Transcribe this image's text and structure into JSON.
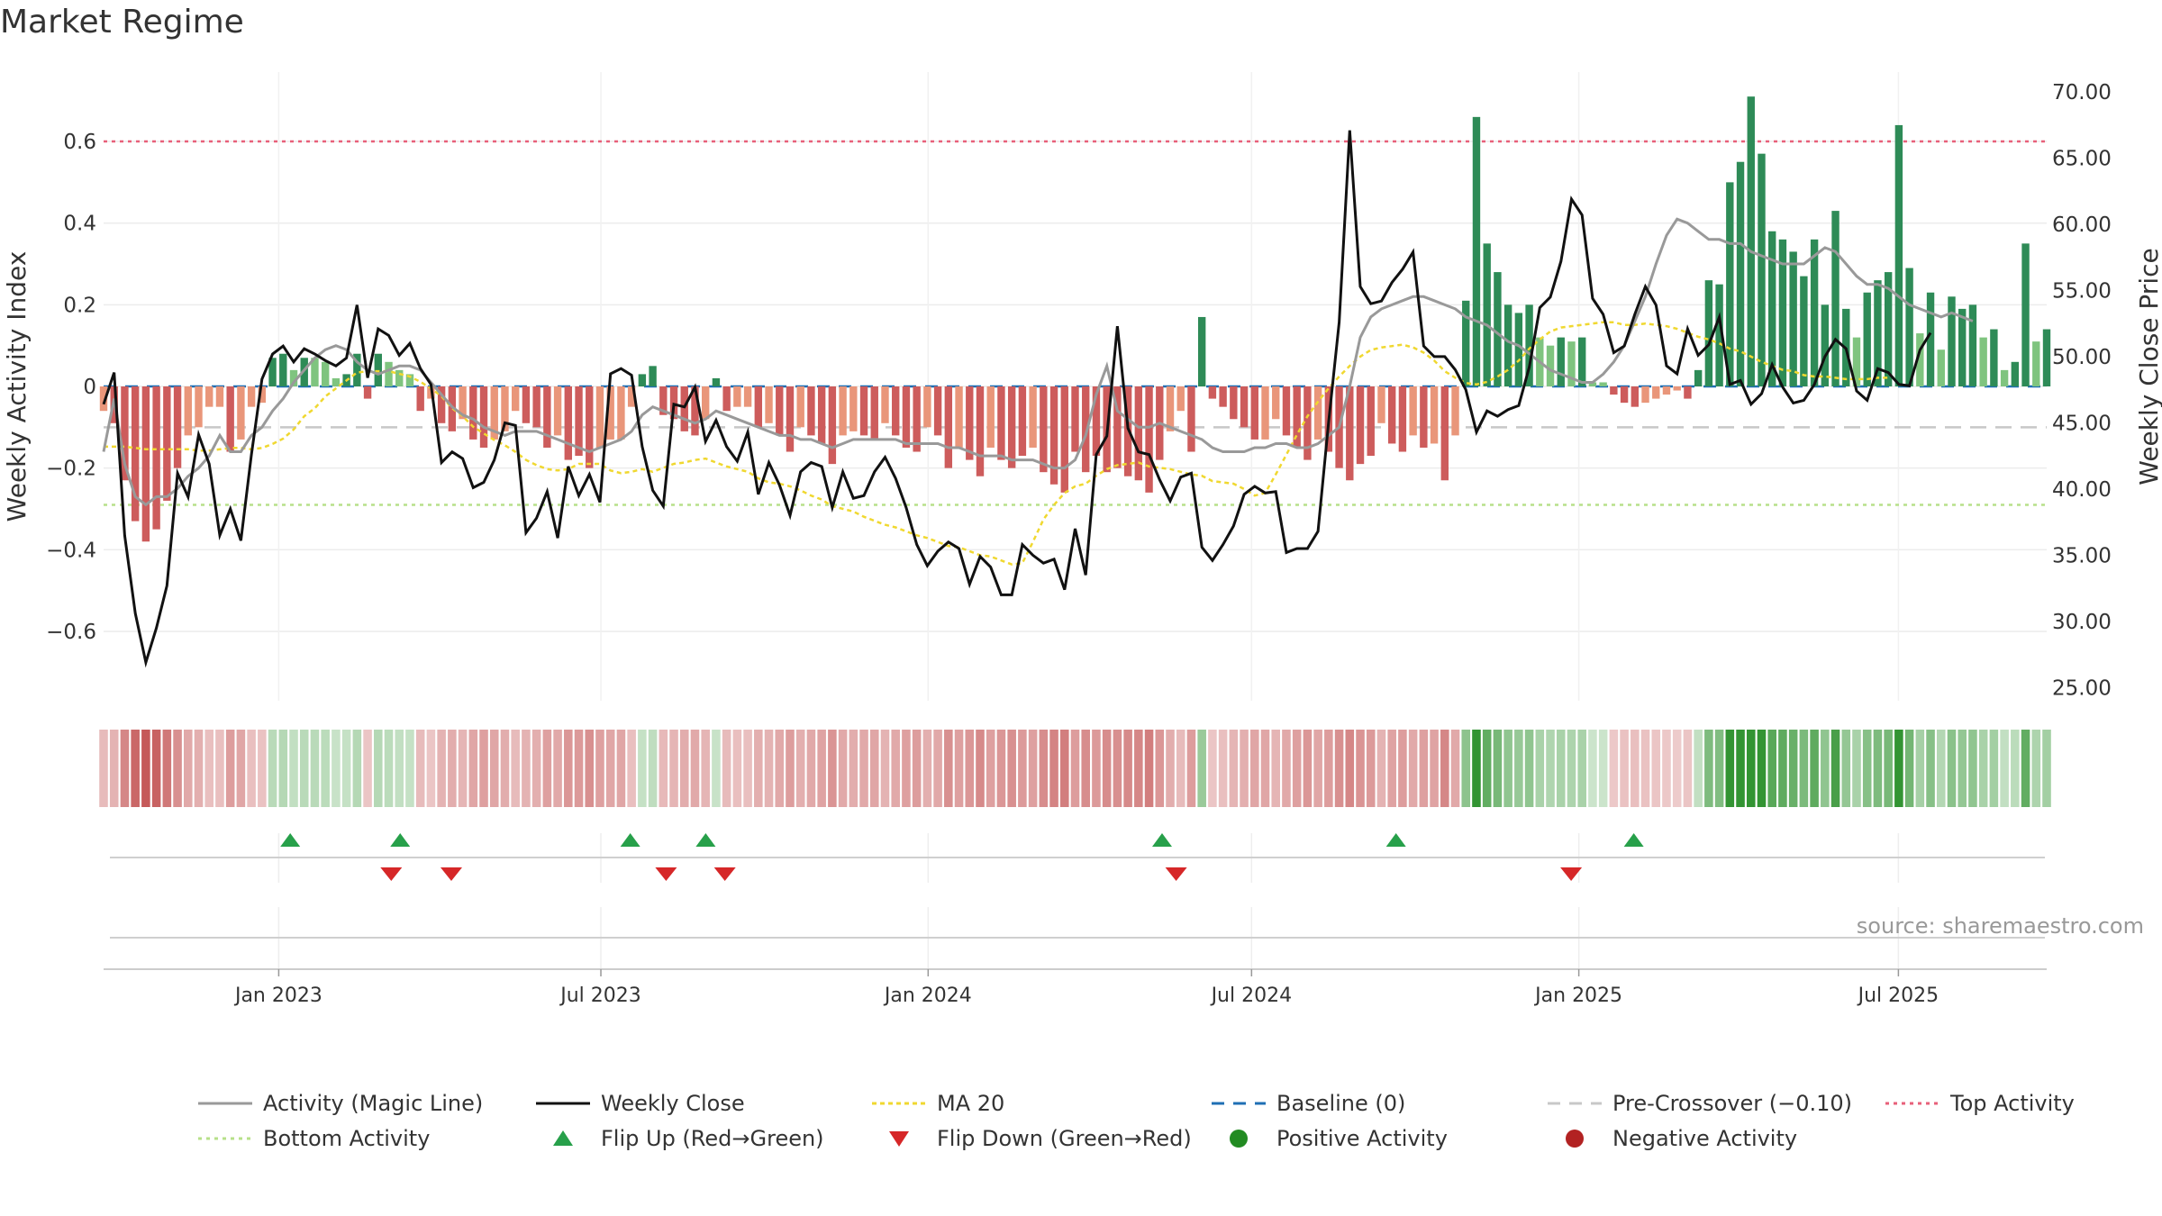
{
  "page": {
    "title": "Market Regime",
    "source": "source: sharemaestro.com"
  },
  "chart_data": {
    "type": "bar",
    "title": "Market Regime",
    "y_left": {
      "label": "Weekly Activity Index",
      "range": [
        -0.77,
        0.77
      ],
      "ticks": [
        -0.6,
        -0.4,
        -0.2,
        0,
        0.2,
        0.4,
        0.6
      ],
      "tick_labels": [
        "−0.6",
        "−0.4",
        "−0.2",
        "0",
        "0.2",
        "0.4",
        "0.6"
      ]
    },
    "y_right": {
      "label": "Weekly Close Price",
      "range": [
        24.0,
        71.5
      ],
      "ticks": [
        25,
        30,
        35,
        40,
        45,
        50,
        55,
        60,
        65,
        70
      ],
      "tick_labels": [
        "25.00",
        "30.00",
        "35.00",
        "40.00",
        "45.00",
        "50.00",
        "55.00",
        "60.00",
        "65.00",
        "70.00"
      ]
    },
    "x_axis": {
      "range_weeks": [
        0,
        152
      ],
      "ticks": [
        {
          "label": "Jan 2023",
          "week": 13.7
        },
        {
          "label": "Jul 2023",
          "week": 38.9
        },
        {
          "label": "Jan 2024",
          "week": 64.5
        },
        {
          "label": "Jul 2024",
          "week": 89.8
        },
        {
          "label": "Jan 2025",
          "week": 115.4
        },
        {
          "label": "Jul 2025",
          "week": 140.4
        }
      ]
    },
    "reference_lines": {
      "top_activity": 0.6,
      "bottom_activity": -0.29,
      "pre_crossover": -0.1,
      "baseline": 0
    },
    "series": [
      {
        "name": "Weekly Activity Index",
        "values": [
          -0.06,
          -0.09,
          -0.23,
          -0.33,
          -0.38,
          -0.35,
          -0.28,
          -0.2,
          -0.12,
          -0.1,
          -0.05,
          -0.05,
          -0.16,
          -0.13,
          -0.05,
          -0.04,
          0.07,
          0.08,
          0.04,
          0.07,
          0.07,
          0.06,
          0.02,
          0.03,
          0.08,
          -0.03,
          0.08,
          0.06,
          0.04,
          0.03,
          -0.06,
          -0.03,
          -0.09,
          -0.11,
          -0.08,
          -0.13,
          -0.15,
          -0.13,
          -0.11,
          -0.06,
          -0.09,
          -0.1,
          -0.15,
          -0.12,
          -0.18,
          -0.17,
          -0.2,
          -0.15,
          -0.13,
          -0.13,
          -0.05,
          0.03,
          0.05,
          -0.07,
          -0.08,
          -0.11,
          -0.12,
          -0.08,
          0.02,
          -0.06,
          -0.05,
          -0.05,
          -0.1,
          -0.09,
          -0.12,
          -0.16,
          -0.1,
          -0.12,
          -0.14,
          -0.19,
          -0.12,
          -0.11,
          -0.12,
          -0.13,
          -0.09,
          -0.12,
          -0.15,
          -0.16,
          -0.1,
          -0.12,
          -0.2,
          -0.15,
          -0.18,
          -0.22,
          -0.15,
          -0.18,
          -0.2,
          -0.17,
          -0.15,
          -0.21,
          -0.24,
          -0.26,
          -0.16,
          -0.21,
          -0.17,
          -0.21,
          -0.2,
          -0.22,
          -0.23,
          -0.26,
          -0.18,
          -0.11,
          -0.06,
          -0.16,
          0.17,
          -0.03,
          -0.05,
          -0.08,
          -0.1,
          -0.13,
          -0.13,
          -0.08,
          -0.12,
          -0.15,
          -0.18,
          -0.13,
          -0.16,
          -0.2,
          -0.23,
          -0.19,
          -0.17,
          -0.09,
          -0.14,
          -0.16,
          -0.12,
          -0.15,
          -0.14,
          -0.23,
          -0.12,
          0.21,
          0.66,
          0.35,
          0.28,
          0.2,
          0.18,
          0.2,
          0.12,
          0.1,
          0.12,
          0.11,
          0.12,
          0.01,
          0.01,
          -0.02,
          -0.04,
          -0.05,
          -0.04,
          -0.03,
          -0.02,
          -0.01,
          -0.03,
          0.04,
          0.26,
          0.25,
          0.5,
          0.55,
          0.71,
          0.57,
          0.38,
          0.36,
          0.33,
          0.27,
          0.36,
          0.2,
          0.43,
          0.19,
          0.12,
          0.23,
          0.26,
          0.28,
          0.64,
          0.29,
          0.13,
          0.23,
          0.09,
          0.22,
          0.19,
          0.2,
          0.12,
          0.14,
          0.04,
          0.06,
          0.35,
          0.11,
          0.14
        ]
      },
      {
        "name": "Activity (Magic Line)",
        "values": [
          -0.16,
          -0.03,
          -0.19,
          -0.27,
          -0.29,
          -0.27,
          -0.27,
          -0.25,
          -0.22,
          -0.2,
          -0.17,
          -0.12,
          -0.16,
          -0.16,
          -0.12,
          -0.1,
          -0.06,
          -0.03,
          0.01,
          0.04,
          0.07,
          0.09,
          0.1,
          0.09,
          0.06,
          0.04,
          0.03,
          0.04,
          0.05,
          0.05,
          0.04,
          0.01,
          -0.02,
          -0.05,
          -0.07,
          -0.08,
          -0.1,
          -0.11,
          -0.12,
          -0.11,
          -0.11,
          -0.11,
          -0.12,
          -0.13,
          -0.14,
          -0.15,
          -0.16,
          -0.15,
          -0.14,
          -0.13,
          -0.11,
          -0.07,
          -0.05,
          -0.06,
          -0.07,
          -0.08,
          -0.09,
          -0.08,
          -0.06,
          -0.07,
          -0.08,
          -0.09,
          -0.1,
          -0.11,
          -0.12,
          -0.12,
          -0.13,
          -0.13,
          -0.14,
          -0.15,
          -0.14,
          -0.13,
          -0.13,
          -0.13,
          -0.13,
          -0.13,
          -0.14,
          -0.14,
          -0.14,
          -0.14,
          -0.15,
          -0.15,
          -0.16,
          -0.17,
          -0.17,
          -0.17,
          -0.18,
          -0.18,
          -0.18,
          -0.19,
          -0.2,
          -0.2,
          -0.18,
          -0.12,
          -0.02,
          0.05,
          -0.06,
          -0.08,
          -0.1,
          -0.1,
          -0.09,
          -0.1,
          -0.11,
          -0.12,
          -0.13,
          -0.15,
          -0.16,
          -0.16,
          -0.16,
          -0.15,
          -0.15,
          -0.14,
          -0.14,
          -0.15,
          -0.15,
          -0.14,
          -0.12,
          -0.1,
          0.0,
          0.12,
          0.17,
          0.19,
          0.2,
          0.21,
          0.22,
          0.22,
          0.21,
          0.2,
          0.19,
          0.17,
          0.16,
          0.15,
          0.13,
          0.11,
          0.1,
          0.08,
          0.06,
          0.04,
          0.03,
          0.02,
          0.01,
          0.01,
          0.03,
          0.06,
          0.1,
          0.16,
          0.22,
          0.3,
          0.37,
          0.41,
          0.4,
          0.38,
          0.36,
          0.36,
          0.35,
          0.35,
          0.33,
          0.32,
          0.31,
          0.3,
          0.3,
          0.3,
          0.32,
          0.34,
          0.33,
          0.3,
          0.27,
          0.25,
          0.25,
          0.24,
          0.22,
          0.2,
          0.19,
          0.18,
          0.17,
          0.18,
          0.17,
          0.16
        ]
      },
      {
        "name": "Weekly Close",
        "values": [
          46.4,
          48.8,
          36.5,
          30.6,
          26.9,
          29.5,
          32.7,
          41.2,
          39.4,
          44.1,
          41.9,
          36.5,
          38.5,
          36.1,
          42.6,
          48.3,
          50.2,
          50.8,
          49.6,
          50.6,
          50.2,
          49.7,
          49.3,
          49.9,
          53.9,
          48.4,
          52.1,
          51.6,
          50.1,
          51.0,
          49.1,
          47.9,
          42.0,
          42.8,
          42.3,
          40.1,
          40.5,
          42.2,
          45.0,
          44.8,
          36.7,
          37.8,
          39.8,
          36.3,
          41.7,
          39.5,
          41.1,
          39.0,
          48.7,
          49.1,
          48.6,
          43.2,
          39.9,
          38.7,
          46.4,
          46.2,
          47.7,
          43.6,
          45.2,
          43.2,
          42.1,
          44.3,
          39.6,
          42.0,
          40.3,
          38.0,
          41.3,
          42.0,
          41.7,
          38.6,
          41.3,
          39.3,
          39.5,
          41.3,
          42.4,
          40.8,
          38.6,
          35.8,
          34.2,
          35.3,
          36.0,
          35.5,
          32.8,
          34.9,
          34.1,
          32.0,
          32.0,
          35.8,
          35.0,
          34.4,
          34.7,
          32.4,
          37.0,
          33.5,
          42.6,
          44.0,
          52.3,
          44.6,
          42.8,
          42.6,
          40.7,
          39.1,
          40.9,
          41.2,
          35.6,
          34.6,
          35.8,
          37.2,
          39.6,
          40.2,
          39.7,
          39.8,
          35.2,
          35.5,
          35.5,
          36.8,
          45.0,
          52.6,
          67.1,
          55.3,
          54.0,
          54.2,
          55.6,
          56.6,
          57.9,
          50.8,
          50.0,
          50.0,
          49.0,
          47.5,
          44.3,
          45.9,
          45.5,
          46.0,
          46.3,
          49.2,
          53.7,
          54.5,
          57.2,
          61.9,
          60.7,
          54.4,
          53.2,
          50.3,
          50.8,
          53.2,
          55.3,
          53.9,
          49.3,
          48.7,
          52.1,
          50.1,
          50.9,
          53.0,
          47.9,
          48.2,
          46.4,
          47.2,
          49.4,
          47.7,
          46.5,
          46.7,
          47.9,
          50.0,
          51.3,
          50.6,
          47.4,
          46.7,
          49.1,
          48.8,
          47.9,
          47.8,
          50.5,
          51.8
        ]
      },
      {
        "name": "MA 20",
        "values": [
          43.2,
          43.2,
          43.2,
          43.1,
          43.0,
          43.0,
          43.0,
          43.0,
          43.0,
          42.9,
          42.9,
          43.0,
          43.1,
          43.1,
          43.0,
          43.1,
          43.4,
          43.8,
          44.5,
          45.5,
          46.1,
          47.0,
          47.6,
          48.2,
          48.8,
          48.9,
          48.9,
          48.9,
          48.7,
          48.5,
          48.1,
          47.6,
          47.0,
          46.1,
          45.5,
          44.7,
          44.2,
          43.7,
          43.3,
          42.8,
          42.2,
          41.8,
          41.5,
          41.4,
          41.5,
          41.9,
          41.9,
          41.9,
          41.4,
          41.2,
          41.3,
          41.5,
          41.3,
          41.6,
          41.9,
          42.0,
          42.2,
          42.3,
          42.0,
          41.7,
          41.5,
          41.3,
          40.8,
          40.5,
          40.4,
          40.2,
          39.9,
          39.5,
          39.2,
          38.7,
          38.5,
          38.3,
          37.9,
          37.6,
          37.3,
          37.1,
          36.8,
          36.5,
          36.3,
          36.0,
          35.7,
          35.6,
          35.3,
          35.0,
          34.9,
          34.6,
          34.3,
          34.4,
          36.0,
          37.7,
          38.8,
          39.7,
          40.2,
          40.4,
          41.0,
          41.5,
          41.8,
          41.9,
          42.0,
          41.7,
          41.6,
          41.5,
          41.3,
          41.1,
          41.0,
          40.6,
          40.5,
          40.4,
          40.0,
          39.5,
          39.7,
          41.1,
          42.6,
          44.1,
          45.5,
          46.6,
          47.6,
          48.5,
          49.3,
          50.0,
          50.5,
          50.7,
          50.8,
          50.9,
          50.7,
          50.3,
          49.7,
          48.9,
          48.4,
          48.0,
          47.9,
          48.1,
          48.5,
          49.0,
          49.7,
          50.6,
          51.3,
          51.9,
          52.2,
          52.3,
          52.4,
          52.5,
          52.6,
          52.6,
          52.4,
          52.4,
          52.5,
          52.4,
          52.3,
          52.1,
          51.8,
          51.5,
          51.3,
          51.0,
          50.6,
          50.4,
          50.0,
          49.6,
          49.3,
          49.0,
          48.9,
          48.6,
          48.5,
          48.5,
          48.4,
          48.3,
          48.3,
          48.3,
          48.4,
          48.4
        ]
      }
    ],
    "flips_up_weeks": [
      14.6,
      23.2,
      41.2,
      47.1,
      82.8,
      101.1,
      119.7
    ],
    "flips_down_weeks": [
      22.5,
      27.2,
      44.0,
      48.6,
      83.9,
      114.8
    ],
    "legend": {
      "placement": "bottom",
      "entries": [
        "Activity (Magic Line)",
        "Weekly Close",
        "MA 20",
        "Baseline (0)",
        "Pre-Crossover (−0.10)",
        "Top Activity",
        "Bottom Activity",
        "Flip Up (Red→Green)",
        "Flip Down (Green→Red)",
        "Positive Activity",
        "Negative Activity"
      ]
    },
    "colors": {
      "pos_strong": "#2e8b57",
      "pos_weak": "#7fc47f",
      "neg_strong": "#cd5c5c",
      "neg_weak": "#e9967a",
      "magic_line": "#999999",
      "close": "#111111",
      "ma20": "#f0d830",
      "baseline": "#1f6fb4",
      "pre_crossover": "#c8c8c8",
      "top": "#e8607a",
      "bottom": "#b7e08a",
      "flip_up": "#27a04a",
      "flip_down": "#d62728",
      "pos_dot": "#228b22",
      "neg_dot": "#b22222"
    }
  }
}
